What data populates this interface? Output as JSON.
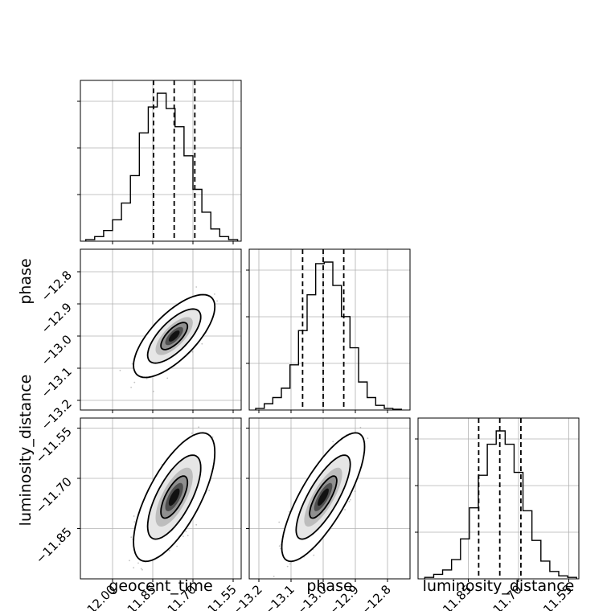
{
  "chart_data": {
    "type": "corner",
    "parameters": [
      {
        "key": "geocent_time",
        "label": "geocent_time",
        "range": [
          -12.12,
          -11.52
        ],
        "ticks": [
          -12.0,
          -11.85,
          -11.7,
          -11.55
        ],
        "tick_labels": [
          "−12.00",
          "−11.85",
          "−11.70",
          "−11.55"
        ],
        "quantiles": [
          -11.847,
          -11.77,
          -11.693
        ],
        "hist_bin_edges": [
          -12.1,
          -12.0667,
          -12.0333,
          -12.0,
          -11.9667,
          -11.9333,
          -11.9,
          -11.8667,
          -11.8333,
          -11.8,
          -11.7667,
          -11.7333,
          -11.7,
          -11.6667,
          -11.6333,
          -11.6,
          -11.5667,
          -11.5333
        ],
        "hist_heights": [
          0.01,
          0.03,
          0.07,
          0.14,
          0.25,
          0.43,
          0.71,
          0.88,
          0.97,
          0.87,
          0.75,
          0.56,
          0.34,
          0.19,
          0.08,
          0.03,
          0.01
        ]
      },
      {
        "key": "phase",
        "label": "phase",
        "range": [
          -13.23,
          -12.73
        ],
        "ticks": [
          -13.2,
          -13.1,
          -13.0,
          -12.9,
          -12.8
        ],
        "tick_labels": [
          "−13.2",
          "−13.1",
          "−13.0",
          "−12.9",
          "−12.8"
        ],
        "quantiles": [
          -13.064,
          -13.0,
          -12.936
        ],
        "hist_bin_edges": [
          -13.21,
          -13.1833,
          -13.1567,
          -13.13,
          -13.1033,
          -13.0767,
          -13.05,
          -13.0233,
          -12.9967,
          -12.97,
          -12.9433,
          -12.9167,
          -12.89,
          -12.8633,
          -12.8367,
          -12.81,
          -12.7833,
          -12.7567
        ],
        "hist_heights": [
          0.01,
          0.04,
          0.08,
          0.14,
          0.29,
          0.51,
          0.74,
          0.94,
          0.95,
          0.8,
          0.6,
          0.4,
          0.18,
          0.08,
          0.03,
          0.01,
          0.005
        ]
      },
      {
        "key": "luminosity_distance",
        "label": "luminosity_distance",
        "range": [
          -12.0,
          -11.52
        ],
        "ticks": [
          -11.85,
          -11.7,
          -11.55
        ],
        "tick_labels": [
          "−11.85",
          "−11.70",
          "−11.55"
        ],
        "quantiles": [
          -11.819,
          -11.756,
          -11.693
        ],
        "hist_bin_edges": [
          -11.98,
          -11.9533,
          -11.9267,
          -11.9,
          -11.8733,
          -11.8467,
          -11.82,
          -11.7933,
          -11.7667,
          -11.74,
          -11.7133,
          -11.6867,
          -11.66,
          -11.6333,
          -11.6067,
          -11.58,
          -11.5533,
          -11.5267
        ],
        "hist_heights": [
          0.01,
          0.03,
          0.06,
          0.13,
          0.27,
          0.48,
          0.7,
          0.91,
          1.0,
          0.91,
          0.72,
          0.46,
          0.26,
          0.12,
          0.05,
          0.02,
          0.01
        ]
      }
    ],
    "pairs": [
      {
        "x": "geocent_time",
        "y": "phase",
        "center": [
          -11.77,
          -13.0
        ],
        "cov": [
          [
            0.0025,
            0.0015
          ],
          [
            0.0015,
            0.0018
          ]
        ],
        "levels": [
          0.39,
          0.86,
          0.99
        ]
      },
      {
        "x": "geocent_time",
        "y": "luminosity_distance",
        "center": [
          -11.77,
          -11.756
        ],
        "cov": [
          [
            0.0025,
            0.0022
          ],
          [
            0.0022,
            0.004
          ]
        ],
        "levels": [
          0.39,
          0.86,
          0.99
        ]
      },
      {
        "x": "phase",
        "y": "luminosity_distance",
        "center": [
          -13.0,
          -11.756
        ],
        "cov": [
          [
            0.0018,
            0.0021
          ],
          [
            0.0021,
            0.004
          ]
        ],
        "levels": [
          0.39,
          0.86,
          0.99
        ]
      }
    ],
    "quantile_style": "dashed",
    "grid": true,
    "colors": {
      "line": "#000000",
      "grid": "#b0b0b0",
      "points": "#7a7a7a"
    }
  }
}
